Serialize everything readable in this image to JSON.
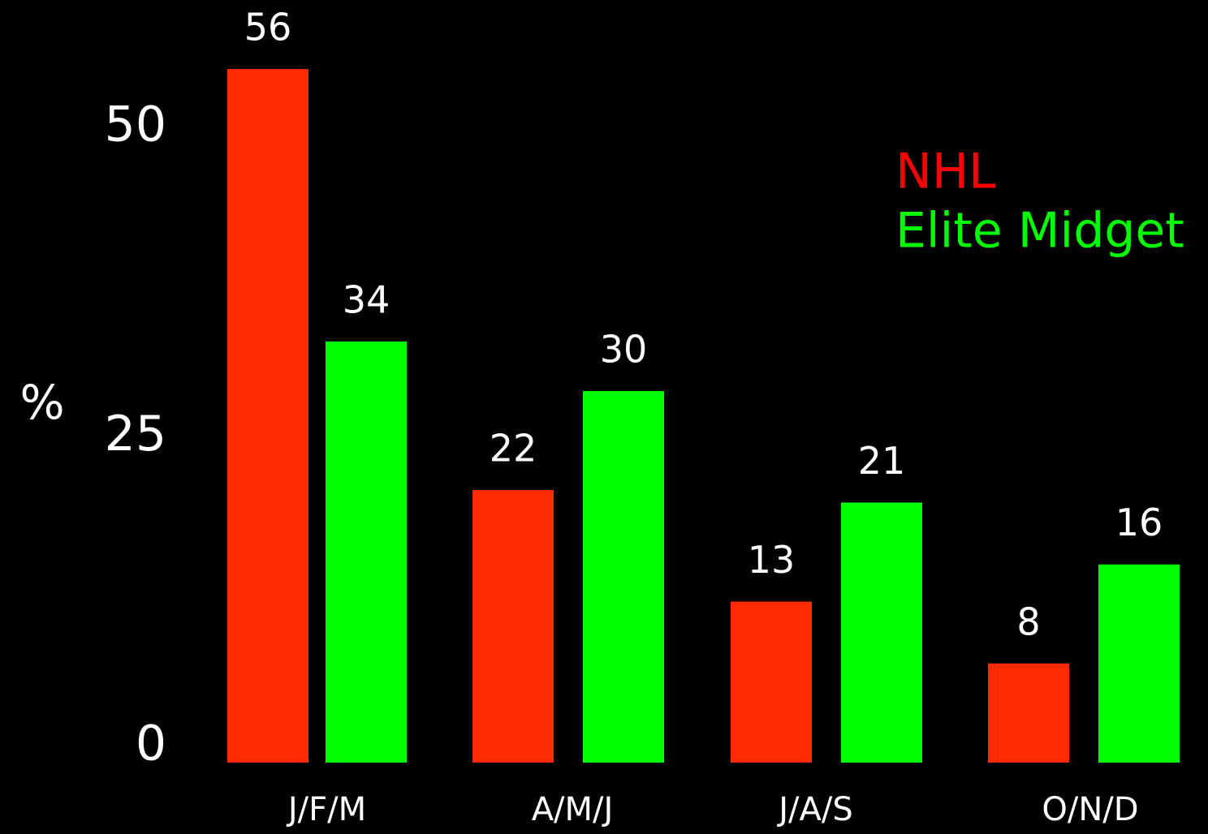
{
  "chart_data": {
    "type": "bar",
    "y_label": "%",
    "categories": [
      "J/F/M",
      "A/M/J",
      "J/A/S",
      "O/N/D"
    ],
    "series": [
      {
        "name": "NHL",
        "color": "#ff2a00",
        "values": [
          56,
          22,
          13,
          8
        ]
      },
      {
        "name": "Elite Midget",
        "color": "#00ff00",
        "values": [
          34,
          30,
          21,
          16
        ]
      }
    ],
    "ylim": [
      0,
      60
    ],
    "yticks": [
      0,
      25,
      50
    ]
  }
}
